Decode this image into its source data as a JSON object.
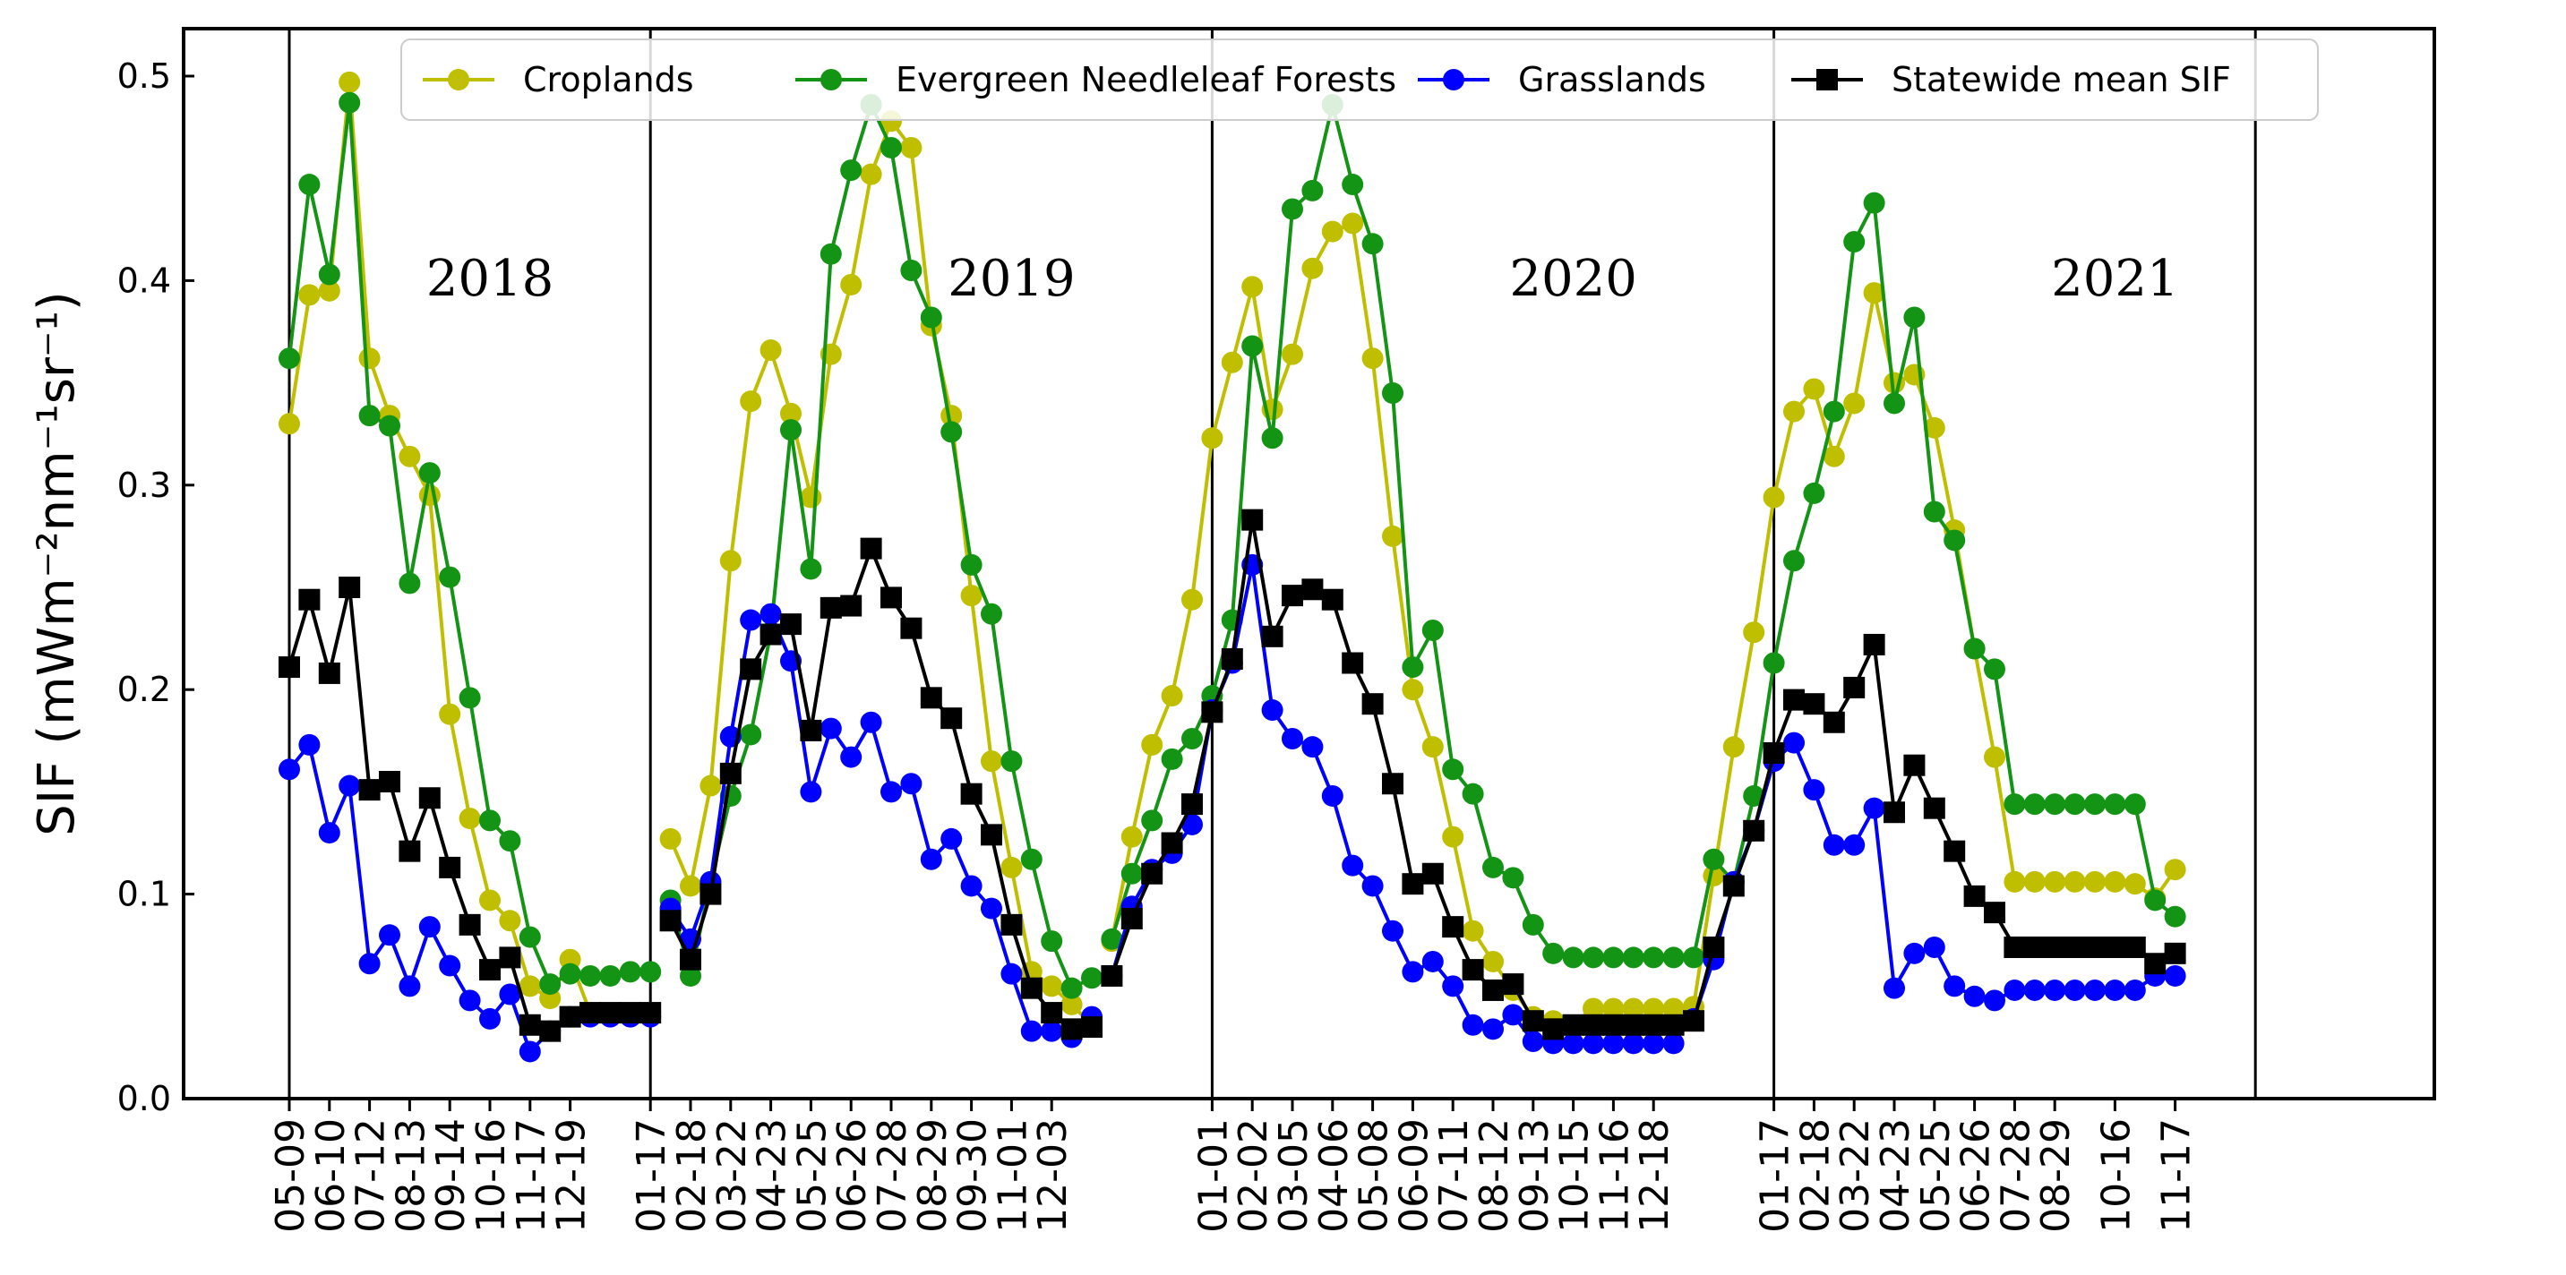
{
  "chart_data": {
    "type": "line",
    "title": "",
    "xlabel": "",
    "ylabel": "SIF (mWm⁻²nm⁻¹sr⁻¹)",
    "ylim": [
      0.0,
      0.5
    ],
    "yticks": [
      "0.0",
      "0.1",
      "0.2",
      "0.3",
      "0.4",
      "0.5"
    ],
    "year_labels": [
      {
        "text": "2018",
        "at_index": 10
      },
      {
        "text": "2019",
        "at_index": 36
      },
      {
        "text": "2020",
        "at_index": 64
      },
      {
        "text": "2021",
        "at_index": 91
      }
    ],
    "year_dividers": [
      0,
      18,
      46,
      74,
      98
    ],
    "x_tick_labels": [
      "05-09",
      "06-10",
      "07-12",
      "08-13",
      "09-14",
      "10-16",
      "11-17",
      "12-19",
      "01-17",
      "02-18",
      "03-22",
      "04-23",
      "05-25",
      "06-26",
      "07-28",
      "08-29",
      "09-30",
      "11-01",
      "12-03",
      "01-01",
      "02-02",
      "03-05",
      "04-06",
      "05-08",
      "06-09",
      "07-11",
      "08-12",
      "09-13",
      "10-15",
      "11-16",
      "12-18",
      "01-17",
      "02-18",
      "03-22",
      "04-23",
      "05-25",
      "06-26",
      "07-28",
      "08-29",
      "10-16",
      "11-17"
    ],
    "x_tick_indices": [
      0,
      2,
      4,
      6,
      8,
      10,
      12,
      14,
      18,
      20,
      22,
      24,
      26,
      28,
      30,
      32,
      34,
      36,
      38,
      46,
      48,
      50,
      52,
      54,
      56,
      58,
      60,
      62,
      64,
      66,
      68,
      74,
      76,
      78,
      80,
      82,
      84,
      86,
      88,
      91,
      94
    ],
    "legend": {
      "position": "top",
      "entries": [
        "Croplands",
        "Evergreen Needleleaf Forests",
        "Grasslands",
        "Statewide mean SIF"
      ]
    },
    "series": [
      {
        "name": "Croplands",
        "color": "#bfbf00",
        "marker": "circle",
        "segments": [
          {
            "x": [
              0,
              1,
              2,
              3,
              4,
              5,
              6,
              7,
              8,
              9,
              10,
              11,
              12,
              13,
              14,
              15,
              16,
              17,
              18
            ],
            "values": [
              0.33,
              0.393,
              0.395,
              0.497,
              0.362,
              0.334,
              0.314,
              0.295,
              0.188,
              0.137,
              0.097,
              0.087,
              0.055,
              0.049,
              0.068,
              0.042,
              0.042,
              0.042,
              0.042
            ]
          },
          {
            "x": [
              19,
              20,
              21,
              22,
              23,
              24,
              25,
              26,
              27,
              28,
              29,
              30,
              31,
              32,
              33,
              34,
              35,
              36,
              37,
              38,
              39,
              40
            ],
            "values": [
              0.127,
              0.104,
              0.153,
              0.263,
              0.341,
              0.366,
              0.335,
              0.294,
              0.364,
              0.398,
              0.452,
              0.478,
              0.465,
              0.378,
              0.334,
              0.246,
              0.165,
              0.113,
              0.062,
              0.055,
              0.046,
              0.036
            ]
          },
          {
            "x": [
              41,
              42,
              43,
              44,
              45,
              46,
              47,
              48,
              49,
              50,
              51,
              52,
              53,
              54,
              55,
              56,
              57,
              58,
              59,
              60,
              61,
              62,
              63,
              64,
              65,
              66,
              67,
              68,
              69
            ],
            "values": [
              0.077,
              0.128,
              0.173,
              0.197,
              0.244,
              0.323,
              0.36,
              0.397,
              0.337,
              0.364,
              0.406,
              0.424,
              0.428,
              0.362,
              0.275,
              0.2,
              0.172,
              0.128,
              0.082,
              0.067,
              0.053,
              0.04,
              0.038,
              0.035,
              0.044,
              0.044,
              0.044,
              0.044,
              0.044
            ]
          },
          {
            "x": [
              70,
              71,
              72,
              73,
              74,
              75,
              76,
              77,
              78,
              79,
              80,
              81,
              82,
              83,
              84,
              85,
              86,
              87,
              88,
              89,
              90,
              91,
              92,
              93,
              94
            ],
            "values": [
              0.045,
              0.109,
              0.172,
              0.228,
              0.294,
              0.336,
              0.347,
              0.314,
              0.34,
              0.394,
              0.35,
              0.354,
              0.328,
              0.278,
              0.22,
              0.167,
              0.106,
              0.106,
              0.106,
              0.106,
              0.106,
              0.106,
              0.105,
              0.098,
              0.112
            ]
          }
        ]
      },
      {
        "name": "Evergreen Needleleaf Forests",
        "color": "#149414",
        "marker": "circle",
        "segments": [
          {
            "x": [
              0,
              1,
              2,
              3,
              4,
              5,
              6,
              7,
              8,
              9,
              10,
              11,
              12,
              13,
              14,
              15,
              16,
              17,
              18
            ],
            "values": [
              0.362,
              0.447,
              0.403,
              0.487,
              0.334,
              0.329,
              0.252,
              0.306,
              0.255,
              0.196,
              0.136,
              0.126,
              0.079,
              0.056,
              0.061,
              0.06,
              0.06,
              0.062,
              0.062
            ]
          },
          {
            "x": [
              19,
              20,
              21,
              22,
              23,
              24,
              25,
              26,
              27,
              28,
              29,
              30,
              31,
              32,
              33,
              34,
              35,
              36,
              37,
              38,
              39,
              40
            ],
            "values": [
              0.097,
              0.06,
              0.106,
              0.148,
              0.178,
              0.228,
              0.327,
              0.259,
              0.413,
              0.454,
              0.486,
              0.465,
              0.405,
              0.382,
              0.326,
              0.261,
              0.237,
              0.165,
              0.117,
              0.077,
              0.054,
              0.059
            ]
          },
          {
            "x": [
              41,
              42,
              43,
              44,
              45,
              46,
              47,
              48,
              49,
              50,
              51,
              52,
              53,
              54,
              55,
              56,
              57,
              58,
              59,
              60,
              61,
              62,
              63,
              64,
              65,
              66,
              67,
              68,
              69
            ],
            "values": [
              0.078,
              0.11,
              0.136,
              0.166,
              0.176,
              0.197,
              0.234,
              0.368,
              0.323,
              0.435,
              0.444,
              0.486,
              0.447,
              0.418,
              0.345,
              0.211,
              0.229,
              0.161,
              0.149,
              0.113,
              0.108,
              0.085,
              0.071,
              0.069,
              0.069,
              0.069,
              0.069,
              0.069,
              0.069
            ]
          },
          {
            "x": [
              70,
              71,
              72,
              73,
              74,
              75,
              76,
              77,
              78,
              79,
              80,
              81,
              82,
              83,
              84,
              85,
              86,
              87,
              88,
              89,
              90,
              91,
              92,
              93,
              94
            ],
            "values": [
              0.069,
              0.117,
              0.106,
              0.148,
              0.213,
              0.263,
              0.296,
              0.336,
              0.419,
              0.438,
              0.34,
              0.382,
              0.287,
              0.273,
              0.22,
              0.21,
              0.144,
              0.144,
              0.144,
              0.144,
              0.144,
              0.144,
              0.144,
              0.097,
              0.089
            ]
          }
        ]
      },
      {
        "name": "Grasslands",
        "color": "#0000ff",
        "marker": "circle",
        "segments": [
          {
            "x": [
              0,
              1,
              2,
              3,
              4,
              5,
              6,
              7,
              8,
              9,
              10,
              11,
              12,
              13,
              14,
              15,
              16,
              17,
              18
            ],
            "values": [
              0.161,
              0.173,
              0.13,
              0.153,
              0.066,
              0.08,
              0.055,
              0.084,
              0.065,
              0.048,
              0.039,
              0.051,
              0.023,
              0.033,
              0.04,
              0.04,
              0.04,
              0.04,
              0.04
            ]
          },
          {
            "x": [
              19,
              20,
              21,
              22,
              23,
              24,
              25,
              26,
              27,
              28,
              29,
              30,
              31,
              32,
              33,
              34,
              35,
              36,
              37,
              38,
              39,
              40
            ],
            "values": [
              0.093,
              0.078,
              0.106,
              0.177,
              0.234,
              0.237,
              0.214,
              0.15,
              0.181,
              0.167,
              0.184,
              0.15,
              0.154,
              0.117,
              0.127,
              0.104,
              0.093,
              0.061,
              0.033,
              0.033,
              0.03,
              0.04
            ]
          },
          {
            "x": [
              41,
              42,
              43,
              44,
              45,
              46,
              47,
              48,
              49,
              50,
              51,
              52,
              53,
              54,
              55,
              56,
              57,
              58,
              59,
              60,
              61,
              62,
              63,
              64,
              65,
              66,
              67,
              68,
              69
            ],
            "values": [
              0.06,
              0.094,
              0.112,
              0.12,
              0.134,
              0.19,
              0.213,
              0.261,
              0.19,
              0.176,
              0.172,
              0.148,
              0.114,
              0.104,
              0.082,
              0.062,
              0.067,
              0.055,
              0.036,
              0.034,
              0.041,
              0.028,
              0.027,
              0.027,
              0.027,
              0.027,
              0.027,
              0.027,
              0.027
            ]
          },
          {
            "x": [
              70,
              71,
              72,
              73,
              74,
              75,
              76,
              77,
              78,
              79,
              80,
              81,
              82,
              83,
              84,
              85,
              86,
              87,
              88,
              89,
              90,
              91,
              92,
              93,
              94
            ],
            "values": [
              0.039,
              0.068,
              0.106,
              0.131,
              0.165,
              0.174,
              0.151,
              0.124,
              0.124,
              0.142,
              0.054,
              0.071,
              0.074,
              0.055,
              0.05,
              0.048,
              0.053,
              0.053,
              0.053,
              0.053,
              0.053,
              0.053,
              0.053,
              0.06,
              0.06
            ]
          }
        ]
      },
      {
        "name": "Statewide mean SIF",
        "color": "#000000",
        "marker": "square",
        "segments": [
          {
            "x": [
              0,
              1,
              2,
              3,
              4,
              5,
              6,
              7,
              8,
              9,
              10,
              11,
              12,
              13,
              14,
              15,
              16,
              17,
              18
            ],
            "values": [
              0.211,
              0.244,
              0.208,
              0.25,
              0.151,
              0.155,
              0.121,
              0.147,
              0.113,
              0.085,
              0.063,
              0.069,
              0.036,
              0.033,
              0.04,
              0.042,
              0.042,
              0.042,
              0.042
            ]
          },
          {
            "x": [
              19,
              20,
              21,
              22,
              23,
              24,
              25,
              26,
              27,
              28,
              29,
              30,
              31,
              32,
              33,
              34,
              35,
              36,
              37,
              38,
              39,
              40
            ],
            "values": [
              0.087,
              0.068,
              0.1,
              0.159,
              0.21,
              0.227,
              0.232,
              0.18,
              0.24,
              0.241,
              0.269,
              0.245,
              0.23,
              0.196,
              0.186,
              0.149,
              0.129,
              0.085,
              0.054,
              0.042,
              0.034,
              0.035
            ]
          },
          {
            "x": [
              41,
              42,
              43,
              44,
              45,
              46,
              47,
              48,
              49,
              50,
              51,
              52,
              53,
              54,
              55,
              56,
              57,
              58,
              59,
              60,
              61,
              62,
              63,
              64,
              65,
              66,
              67,
              68,
              69
            ],
            "values": [
              0.06,
              0.088,
              0.11,
              0.125,
              0.144,
              0.189,
              0.215,
              0.283,
              0.226,
              0.246,
              0.249,
              0.244,
              0.213,
              0.193,
              0.154,
              0.105,
              0.11,
              0.084,
              0.063,
              0.053,
              0.056,
              0.038,
              0.034,
              0.036,
              0.036,
              0.036,
              0.036,
              0.036,
              0.036
            ]
          },
          {
            "x": [
              70,
              71,
              72,
              73,
              74,
              75,
              76,
              77,
              78,
              79,
              80,
              81,
              82,
              83,
              84,
              85,
              86,
              87,
              88,
              89,
              90,
              91,
              92,
              93,
              94
            ],
            "values": [
              0.038,
              0.074,
              0.104,
              0.131,
              0.169,
              0.195,
              0.193,
              0.184,
              0.201,
              0.222,
              0.14,
              0.163,
              0.142,
              0.121,
              0.099,
              0.091,
              0.074,
              0.074,
              0.074,
              0.074,
              0.074,
              0.074,
              0.074,
              0.066,
              0.071
            ]
          }
        ]
      }
    ]
  }
}
